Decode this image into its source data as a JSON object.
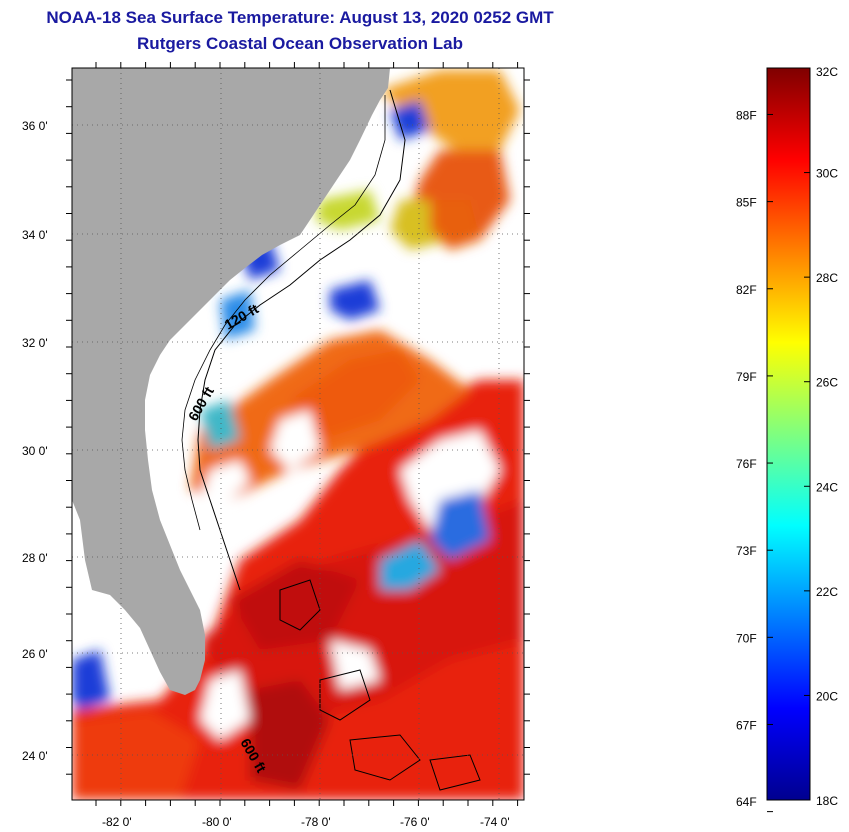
{
  "title_line1": "NOAA-18 Sea Surface Temperature:  August 13, 2020 0252 GMT",
  "title_line2": "Rutgers Coastal Ocean Observation Lab",
  "colors": {
    "land": "#a8a8a8",
    "no_data": "#ffffff",
    "title": "#1a1aa0"
  },
  "map": {
    "lon_range": [
      -83,
      -73
    ],
    "lat_range": [
      23,
      37
    ],
    "lon_labels": [
      {
        "lon": -82,
        "text": "-82 0'"
      },
      {
        "lon": -80,
        "text": "-80 0'"
      },
      {
        "lon": -78,
        "text": "-78 0'"
      },
      {
        "lon": -76,
        "text": "-76 0'"
      },
      {
        "lon": -74,
        "text": "-74 0'"
      }
    ],
    "lat_labels": [
      {
        "lat": 36,
        "text": "36 0'"
      },
      {
        "lat": 34,
        "text": "34 0'"
      },
      {
        "lat": 32,
        "text": "32 0'"
      },
      {
        "lat": 30,
        "text": "30 0'"
      },
      {
        "lat": 28,
        "text": "28 0'"
      },
      {
        "lat": 26,
        "text": "26 0'"
      },
      {
        "lat": 24,
        "text": "24 0'"
      }
    ],
    "contour_labels": [
      "120 ft",
      "600 ft",
      "600 ft"
    ]
  },
  "colorbar": {
    "min_c": 18,
    "max_c": 32,
    "celsius_labels": [
      {
        "value": 32,
        "text": "32C"
      },
      {
        "value": 30,
        "text": "30C"
      },
      {
        "value": 28,
        "text": "28C"
      },
      {
        "value": 26,
        "text": "26C"
      },
      {
        "value": 24,
        "text": "24C"
      },
      {
        "value": 22,
        "text": "22C"
      },
      {
        "value": 20,
        "text": "20C"
      },
      {
        "value": 18,
        "text": "18C"
      }
    ],
    "fahrenheit_labels": [
      {
        "value": 88,
        "text": "88F"
      },
      {
        "value": 85,
        "text": "85F"
      },
      {
        "value": 82,
        "text": "82F"
      },
      {
        "value": 79,
        "text": "79F"
      },
      {
        "value": 76,
        "text": "76F"
      },
      {
        "value": 73,
        "text": "73F"
      },
      {
        "value": 70,
        "text": "70F"
      },
      {
        "value": 67,
        "text": "67F"
      },
      {
        "value": 64,
        "text": "64F"
      }
    ]
  }
}
